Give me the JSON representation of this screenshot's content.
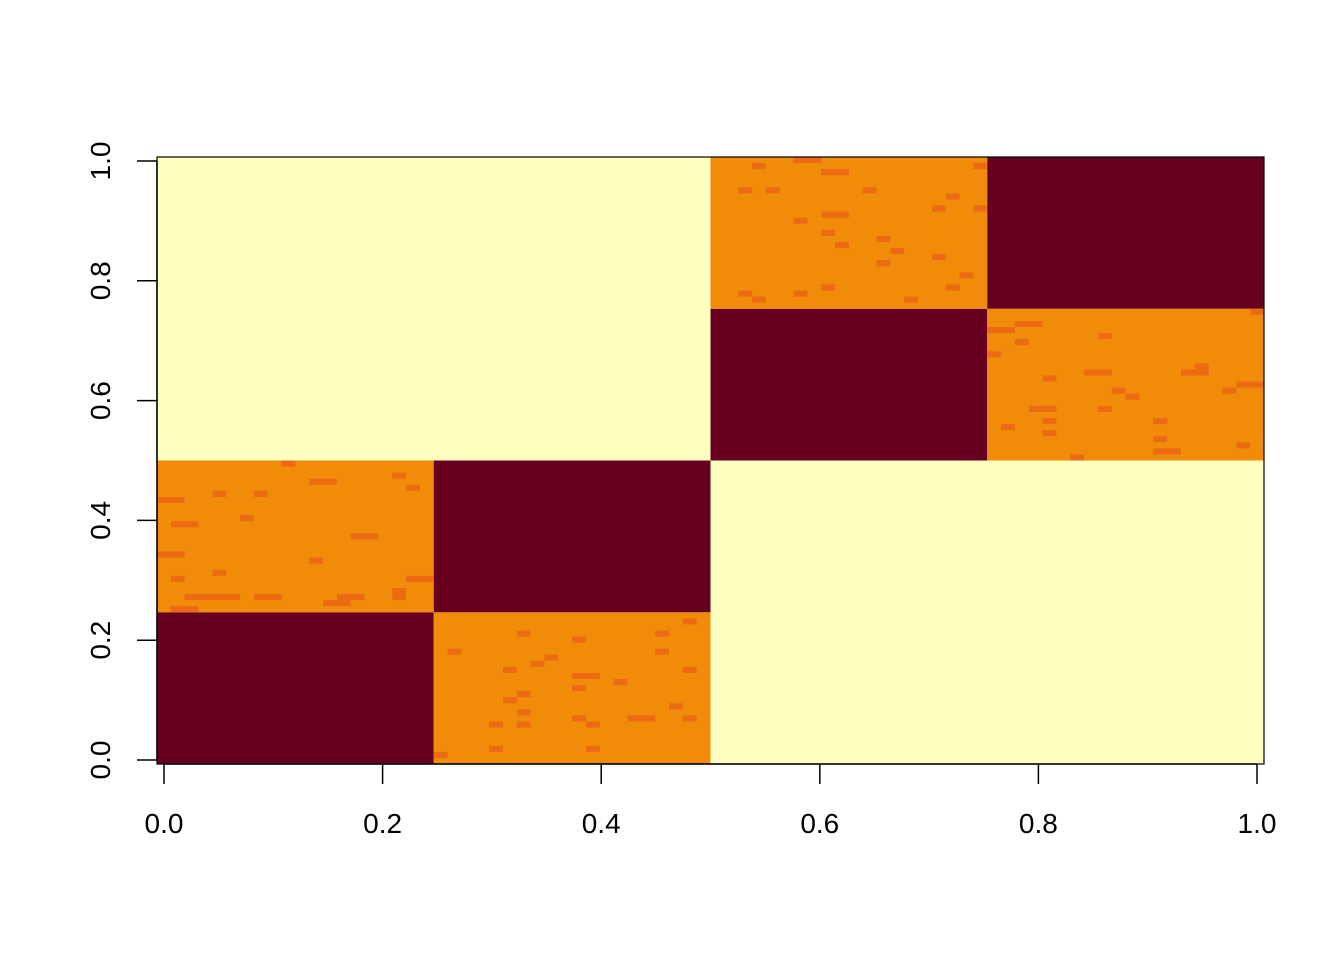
{
  "chart_data": {
    "type": "heatmap",
    "title": "",
    "xlabel": "",
    "ylabel": "",
    "xlim": [
      0,
      1
    ],
    "ylim": [
      0,
      1
    ],
    "x_ticks": [
      0.0,
      0.2,
      0.4,
      0.6,
      0.8,
      1.0
    ],
    "x_tick_labels": [
      "0.0",
      "0.2",
      "0.4",
      "0.6",
      "0.8",
      "1.0"
    ],
    "y_ticks": [
      0.0,
      0.2,
      0.4,
      0.6,
      0.8,
      1.0
    ],
    "y_tick_labels": [
      "0.0",
      "0.2",
      "0.4",
      "0.6",
      "0.8",
      "1.0"
    ],
    "grid": false,
    "legend": "none",
    "colors": {
      "high": "#67001F",
      "medium": "#F08C0A",
      "medium_speckle": "#EC6A14",
      "low": "#FFFFBF"
    },
    "matrix_rows_bottom_to_top": [
      [
        "high",
        "medium",
        "low",
        "low"
      ],
      [
        "medium",
        "high",
        "low",
        "low"
      ],
      [
        "low",
        "low",
        "high",
        "medium"
      ],
      [
        "low",
        "low",
        "medium",
        "high"
      ]
    ],
    "grid_bounds": [
      0,
      0.25,
      0.5,
      0.75,
      1.0
    ]
  }
}
